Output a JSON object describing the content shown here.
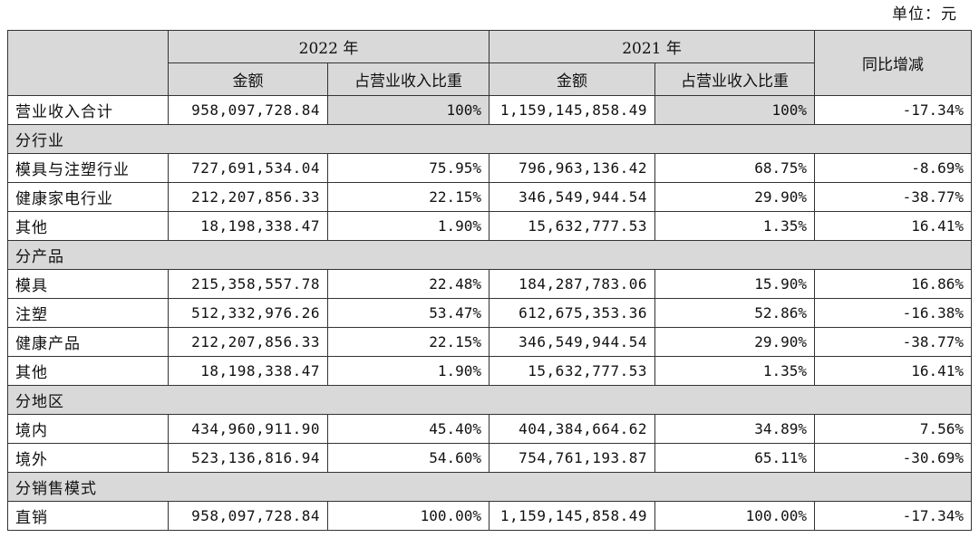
{
  "unit_label": "单位：元",
  "header": {
    "year_2022": "2022 年",
    "year_2021": "2021 年",
    "change": "同比增减",
    "amount": "金额",
    "share": "占营业收入比重"
  },
  "total": {
    "label": "营业收入合计",
    "amount_2022": "958,097,728.84",
    "share_2022": "100%",
    "amount_2021": "1,159,145,858.49",
    "share_2021": "100%",
    "change": "-17.34%"
  },
  "sections": [
    {
      "title": "分行业",
      "rows": [
        {
          "label": "模具与注塑行业",
          "amount_2022": "727,691,534.04",
          "share_2022": "75.95%",
          "amount_2021": "796,963,136.42",
          "share_2021": "68.75%",
          "change": "-8.69%"
        },
        {
          "label": "健康家电行业",
          "amount_2022": "212,207,856.33",
          "share_2022": "22.15%",
          "amount_2021": "346,549,944.54",
          "share_2021": "29.90%",
          "change": "-38.77%"
        },
        {
          "label": "其他",
          "amount_2022": "18,198,338.47",
          "share_2022": "1.90%",
          "amount_2021": "15,632,777.53",
          "share_2021": "1.35%",
          "change": "16.41%"
        }
      ]
    },
    {
      "title": "分产品",
      "rows": [
        {
          "label": "模具",
          "amount_2022": "215,358,557.78",
          "share_2022": "22.48%",
          "amount_2021": "184,287,783.06",
          "share_2021": "15.90%",
          "change": "16.86%"
        },
        {
          "label": "注塑",
          "amount_2022": "512,332,976.26",
          "share_2022": "53.47%",
          "amount_2021": "612,675,353.36",
          "share_2021": "52.86%",
          "change": "-16.38%"
        },
        {
          "label": "健康产品",
          "amount_2022": "212,207,856.33",
          "share_2022": "22.15%",
          "amount_2021": "346,549,944.54",
          "share_2021": "29.90%",
          "change": "-38.77%"
        },
        {
          "label": "其他",
          "amount_2022": "18,198,338.47",
          "share_2022": "1.90%",
          "amount_2021": "15,632,777.53",
          "share_2021": "1.35%",
          "change": "16.41%"
        }
      ]
    },
    {
      "title": "分地区",
      "rows": [
        {
          "label": "境内",
          "amount_2022": "434,960,911.90",
          "share_2022": "45.40%",
          "amount_2021": "404,384,664.62",
          "share_2021": "34.89%",
          "change": "7.56%"
        },
        {
          "label": "境外",
          "amount_2022": "523,136,816.94",
          "share_2022": "54.60%",
          "amount_2021": "754,761,193.87",
          "share_2021": "65.11%",
          "change": "-30.69%"
        }
      ]
    },
    {
      "title": "分销售模式",
      "rows": [
        {
          "label": "直销",
          "amount_2022": "958,097,728.84",
          "share_2022": "100.00%",
          "amount_2021": "1,159,145,858.49",
          "share_2021": "100.00%",
          "change": "-17.34%"
        }
      ]
    }
  ]
}
